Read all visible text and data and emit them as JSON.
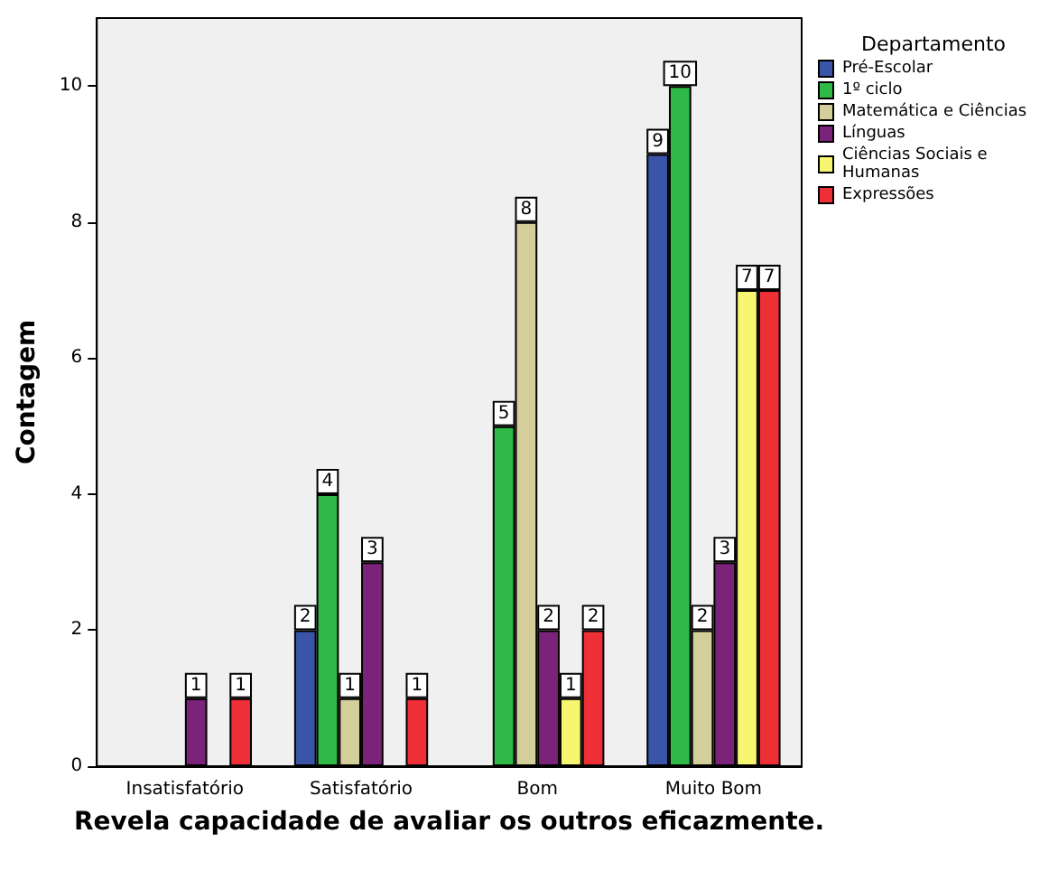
{
  "chart_data": {
    "type": "bar",
    "xlabel": "Revela capacidade de avaliar os outros eficazmente.",
    "ylabel": "Contagem",
    "legend_title": "Departamento",
    "categories": [
      "Insatisfatório",
      "Satisfatório",
      "Bom",
      "Muito Bom"
    ],
    "series": [
      {
        "name": "Pré-Escolar",
        "color": "#3a55a8",
        "values": [
          null,
          2,
          null,
          9
        ]
      },
      {
        "name": "1º ciclo",
        "color": "#2fba48",
        "values": [
          null,
          4,
          5,
          10
        ]
      },
      {
        "name": "Matemática e Ciências",
        "color": "#d4cf9a",
        "values": [
          null,
          1,
          8,
          2
        ]
      },
      {
        "name": "Línguas",
        "color": "#7a2378",
        "values": [
          1,
          3,
          2,
          3
        ]
      },
      {
        "name": "Ciências Sociais e Humanas",
        "color": "#f8f571",
        "values": [
          null,
          null,
          1,
          7
        ]
      },
      {
        "name": "Expressões",
        "color": "#ee2f36",
        "values": [
          1,
          1,
          2,
          7
        ]
      }
    ],
    "ylim": [
      0,
      11
    ],
    "yticks": [
      0,
      2,
      4,
      6,
      8,
      10
    ],
    "grid": false,
    "legend": "right",
    "data_labels": true
  }
}
